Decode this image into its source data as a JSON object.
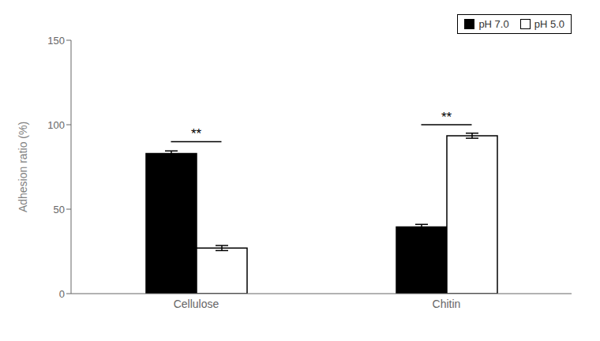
{
  "chart_data": {
    "type": "bar",
    "categories": [
      "Cellulose",
      "Chitin"
    ],
    "series": [
      {
        "name": "pH 7.0",
        "color": "#000000",
        "values": [
          83.0,
          39.5
        ],
        "errors": [
          1.5,
          1.5
        ]
      },
      {
        "name": "pH 5.0",
        "color": "#ffffff",
        "values": [
          27.0,
          93.5
        ],
        "errors": [
          1.5,
          1.5
        ]
      }
    ],
    "ylabel": "Adhesion ratio (%)",
    "ylim": [
      0,
      150
    ],
    "yticks": [
      0,
      50,
      100,
      150
    ],
    "grid": false,
    "legend": "upper right",
    "annotations": [
      {
        "text": "**",
        "category": "Cellulose",
        "y": 90
      },
      {
        "text": "**",
        "category": "Chitin",
        "y": 100
      }
    ]
  }
}
